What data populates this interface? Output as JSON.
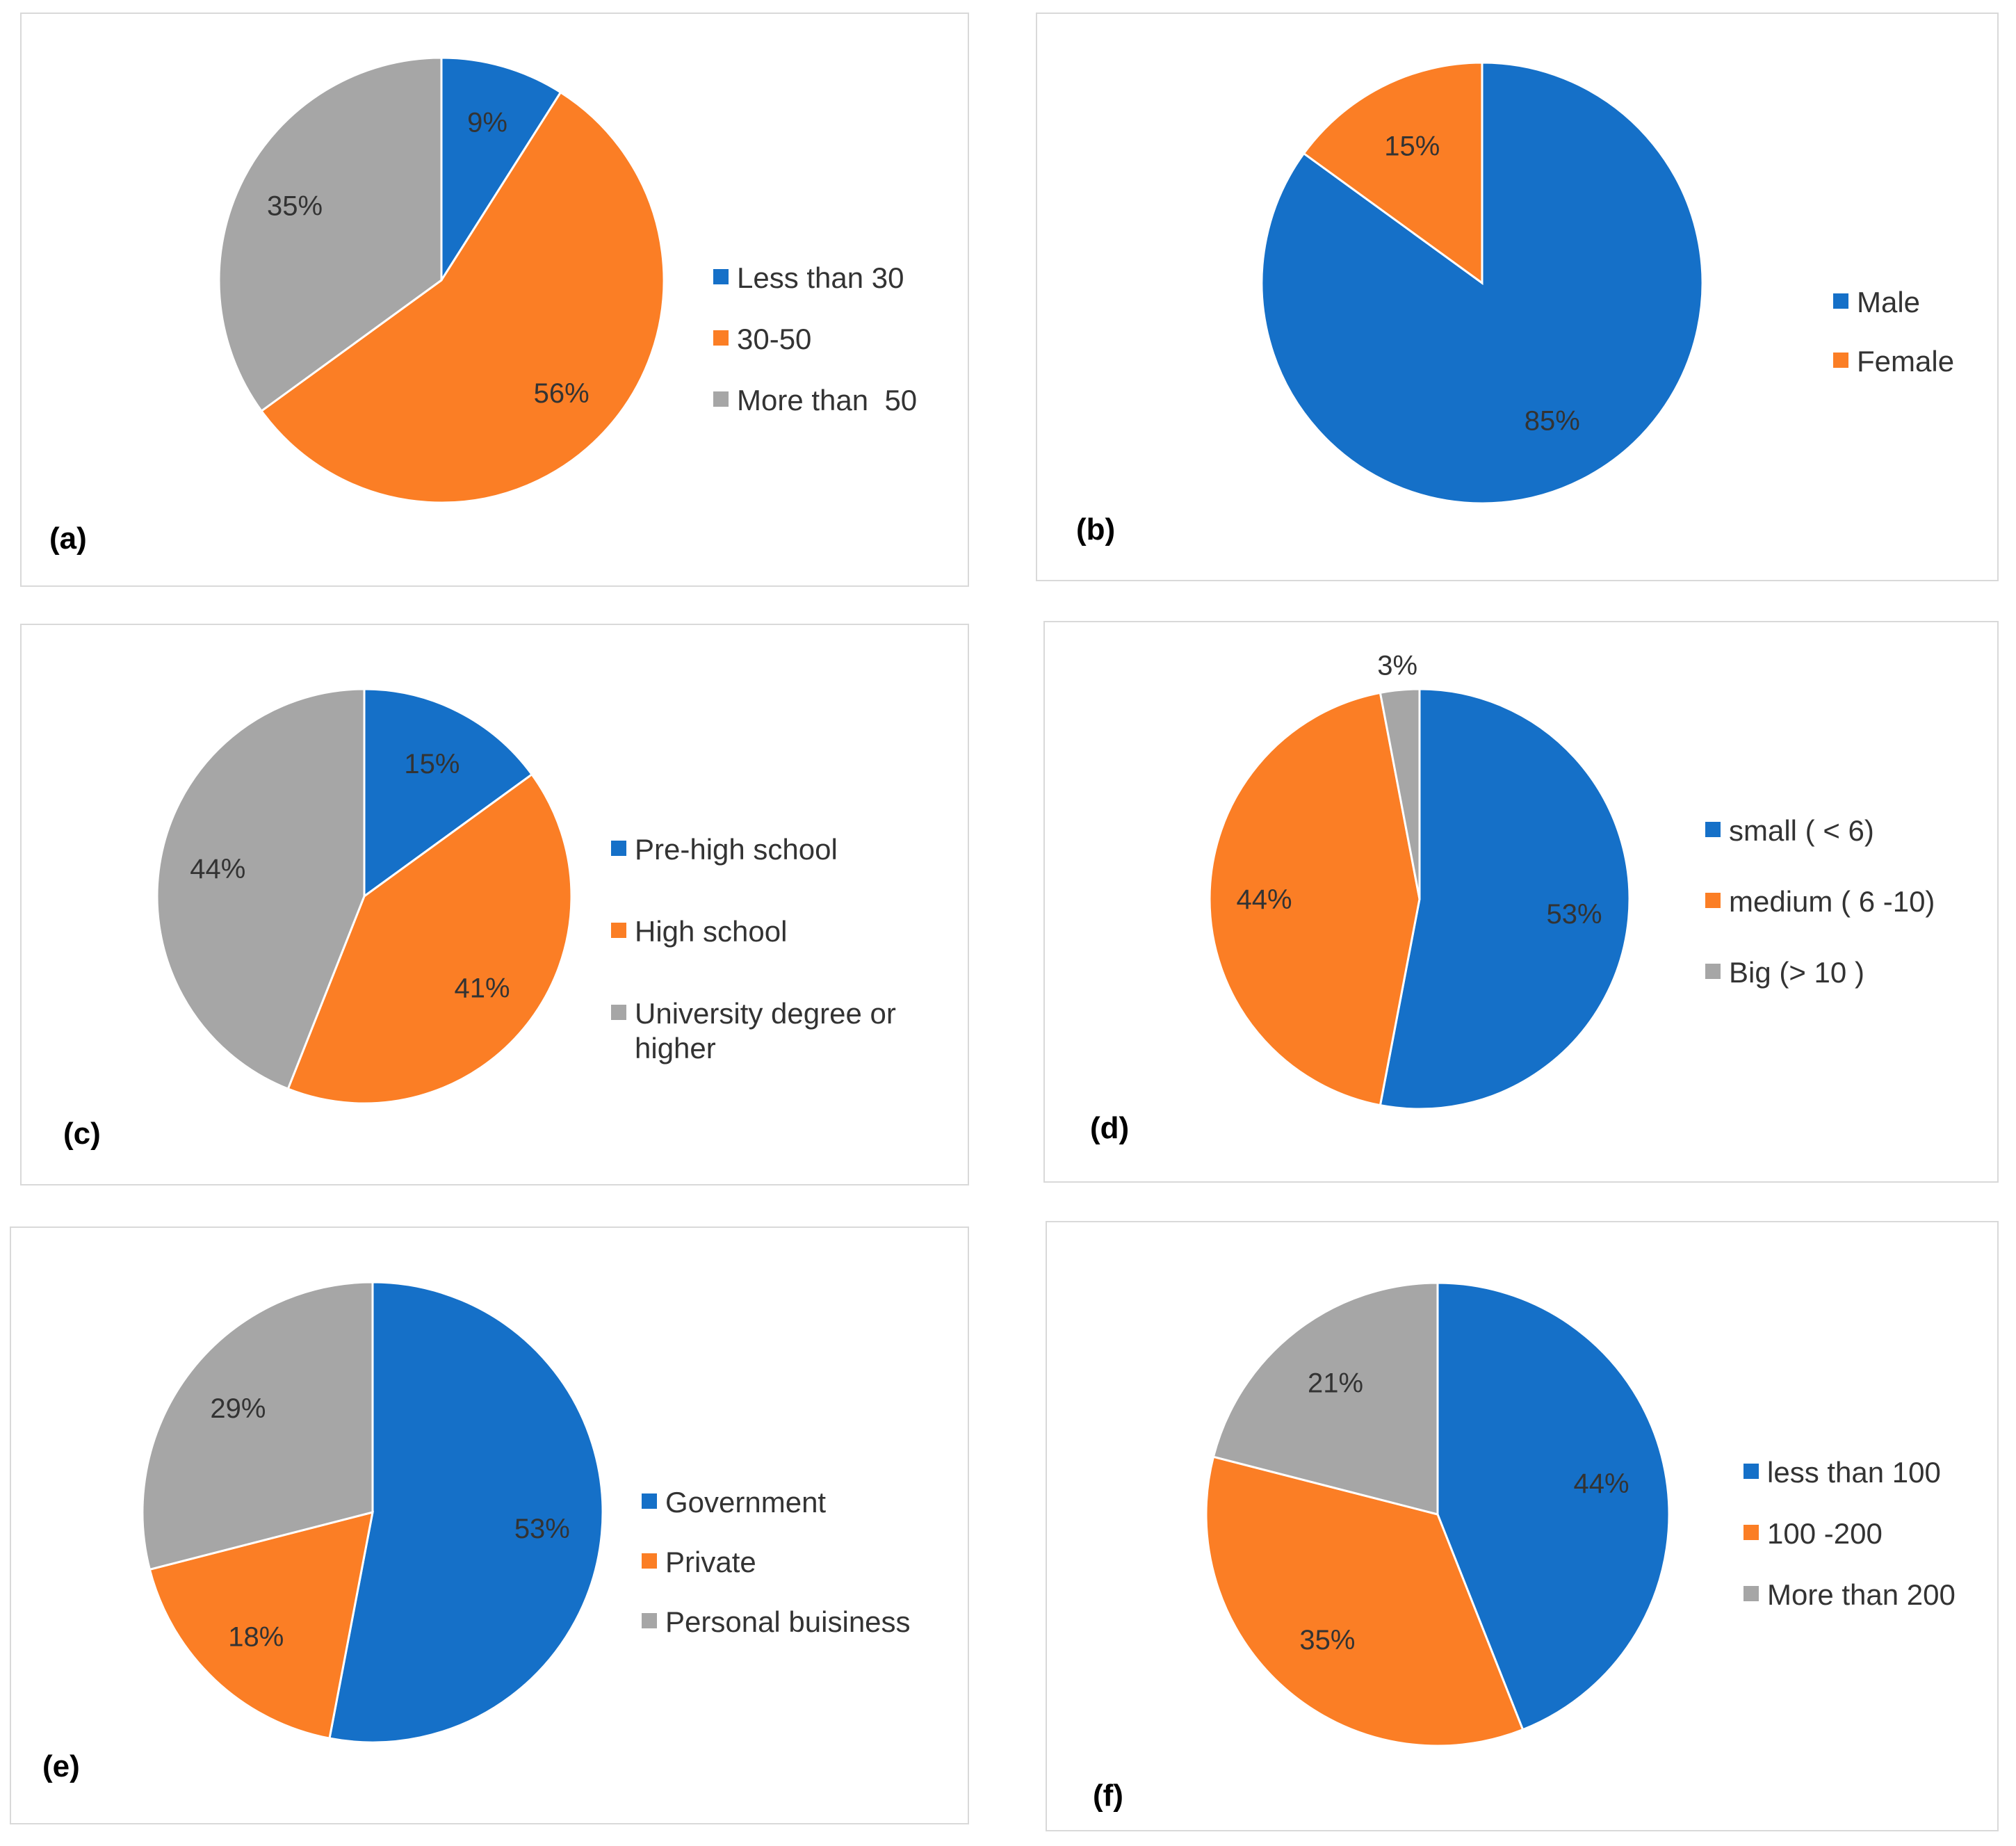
{
  "colors": {
    "blue": "#1570c8",
    "orange": "#fb7e25",
    "gray": "#a6a6a6"
  },
  "chart_data": [
    {
      "id": "a",
      "type": "pie",
      "panel_label": "(a)",
      "categories": [
        "Less than 30",
        "30-50",
        "More than  50"
      ],
      "values": [
        9,
        56,
        35
      ],
      "labels": [
        "9%",
        "56%",
        "35%"
      ],
      "colors": [
        "#1570c8",
        "#fb7e25",
        "#a6a6a6"
      ],
      "legend": "right"
    },
    {
      "id": "b",
      "type": "pie",
      "panel_label": "(b)",
      "categories": [
        "Male",
        "Female"
      ],
      "values": [
        85,
        15
      ],
      "labels": [
        "85%",
        "15%"
      ],
      "colors": [
        "#1570c8",
        "#fb7e25"
      ],
      "legend": "right"
    },
    {
      "id": "c",
      "type": "pie",
      "panel_label": "(c)",
      "categories": [
        "Pre-high school",
        "High school",
        "University degree or\nhigher"
      ],
      "values": [
        15,
        41,
        44
      ],
      "labels": [
        "15%",
        "41%",
        "44%"
      ],
      "colors": [
        "#1570c8",
        "#fb7e25",
        "#a6a6a6"
      ],
      "legend": "right"
    },
    {
      "id": "d",
      "type": "pie",
      "panel_label": "(d)",
      "categories": [
        "small ( < 6)",
        "medium ( 6 -10)",
        "Big (> 10 )"
      ],
      "values": [
        53,
        44,
        3
      ],
      "labels": [
        "53%",
        "44%",
        "3%"
      ],
      "colors": [
        "#1570c8",
        "#fb7e25",
        "#a6a6a6"
      ],
      "legend": "right"
    },
    {
      "id": "e",
      "type": "pie",
      "panel_label": "(e)",
      "categories": [
        "Government",
        "Private",
        "Personal buisiness"
      ],
      "values": [
        53,
        18,
        29
      ],
      "labels": [
        "53%",
        "18%",
        "29%"
      ],
      "colors": [
        "#1570c8",
        "#fb7e25",
        "#a6a6a6"
      ],
      "legend": "right"
    },
    {
      "id": "f",
      "type": "pie",
      "panel_label": "(f)",
      "categories": [
        "less than 100",
        "100 -200",
        "More than 200"
      ],
      "values": [
        44,
        35,
        21
      ],
      "labels": [
        "44%",
        "35%",
        "21%"
      ],
      "colors": [
        "#1570c8",
        "#fb7e25",
        "#a6a6a6"
      ],
      "legend": "right"
    }
  ]
}
